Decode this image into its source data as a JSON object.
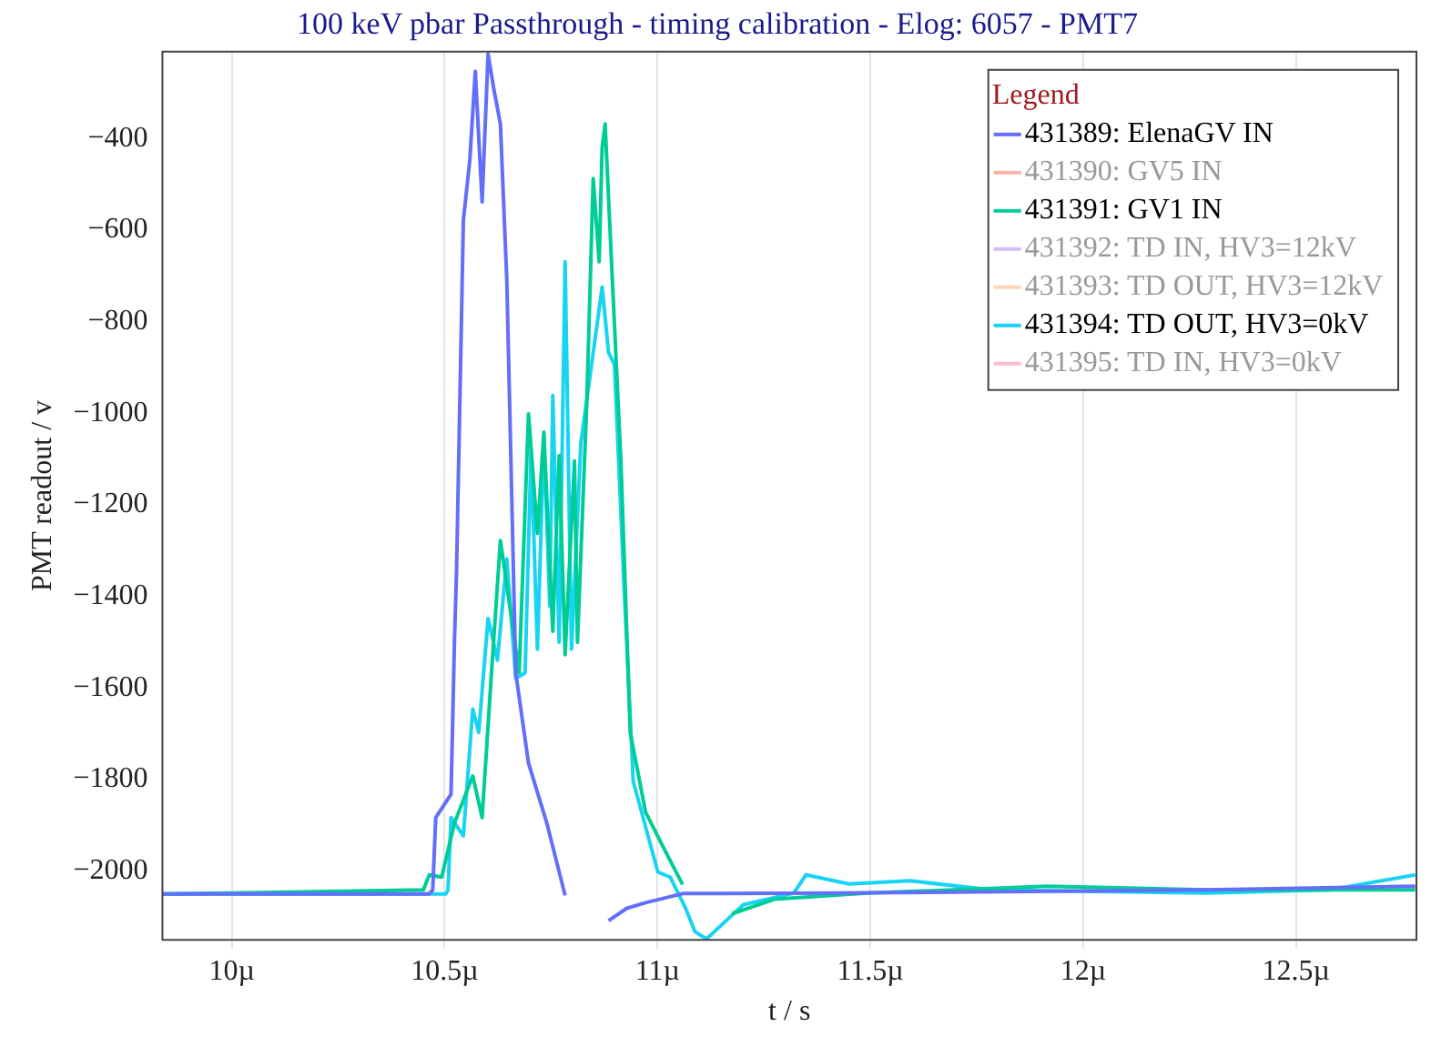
{
  "chart_data": {
    "type": "line",
    "title": "100 keV pbar Passthrough - timing calibration - Elog: 6057 - PMT7",
    "xlabel": "t / s",
    "ylabel": "PMT readout / v",
    "legend_title": "Legend",
    "legend": "top right",
    "grid": "x",
    "marker": "none",
    "line_style": "solid",
    "xlim": [
      9.837,
      12.783
    ],
    "xticks": [
      {
        "value": 10,
        "label": "10µ"
      },
      {
        "value": 10.5,
        "label": "10.5µ"
      },
      {
        "value": 11,
        "label": "11µ"
      },
      {
        "value": 11.5,
        "label": "11.5µ"
      },
      {
        "value": 12,
        "label": "12µ"
      },
      {
        "value": 12.5,
        "label": "12.5µ"
      }
    ],
    "ylim": [
      -2150,
      -210
    ],
    "yticks": [
      -2000,
      -1800,
      -1600,
      -1400,
      -1200,
      -1000,
      -800,
      -600,
      -400
    ],
    "series": [
      {
        "name": "431389: ElenaGV IN",
        "color": "#636efa",
        "x": [
          9.837,
          10.463,
          10.472,
          10.479,
          10.515,
          10.523,
          10.528,
          10.544,
          10.559,
          10.572,
          10.588,
          10.602,
          10.615,
          10.631,
          10.646,
          10.659,
          10.667,
          10.697,
          10.74,
          10.783,
          10.822,
          10.846,
          10.87,
          10.885,
          10.928,
          10.972,
          11.059,
          11.146,
          11.42,
          12.289,
          12.78
        ],
        "values": [
          -2050,
          -2050,
          -2041,
          -1883,
          -1832,
          -1500,
          -1341,
          -578,
          -448,
          -253,
          -538,
          -215,
          -289,
          -368,
          -709,
          -1238,
          -1567,
          -1764,
          -1895,
          -2053,
          null,
          null,
          null,
          -2108,
          -2081,
          -2069,
          -2049,
          -2049,
          -2048,
          -2041,
          -2033
        ]
      },
      {
        "name": "431390: GV5 IN",
        "color": "#ef553b"
      },
      {
        "name": "431391: GV1 IN",
        "color": "#00cc96",
        "x": [
          9.837,
          10.45,
          10.464,
          10.493,
          10.523,
          10.566,
          10.588,
          10.61,
          10.631,
          10.653,
          10.675,
          10.697,
          10.718,
          10.733,
          10.754,
          10.769,
          10.783,
          10.805,
          10.812,
          10.834,
          10.849,
          10.863,
          10.87,
          10.877,
          10.892,
          10.914,
          10.936,
          10.972,
          11.015,
          11.059,
          11.08,
          11.098,
          11.115,
          11.175,
          11.276,
          11.493,
          11.915,
          12.289,
          12.78
        ],
        "values": [
          -2050,
          -2041,
          -2008,
          -2013,
          -1895,
          -1792,
          -1883,
          -1567,
          -1278,
          -1421,
          -1567,
          -1001,
          -1262,
          -1041,
          -1476,
          -1092,
          -1527,
          -1104,
          -1500,
          -974,
          -487,
          -669,
          -420,
          -368,
          -669,
          -1104,
          -1697,
          -1871,
          -1950,
          -2029,
          null,
          null,
          null,
          -2093,
          -2061,
          -2048,
          -2033,
          -2041,
          -2041
        ]
      },
      {
        "name": "431392: TD IN, HV3=12kV",
        "color": "#ab63fa"
      },
      {
        "name": "431393: TD OUT, HV3=12kV",
        "color": "#ffa15a"
      },
      {
        "name": "431394: TD OUT, HV3=0kV",
        "color": "#19d3f3",
        "x": [
          9.837,
          10.502,
          10.508,
          10.515,
          10.544,
          10.566,
          10.58,
          10.602,
          10.624,
          10.646,
          10.667,
          10.689,
          10.703,
          10.718,
          10.733,
          10.747,
          10.754,
          10.769,
          10.783,
          10.798,
          10.82,
          10.841,
          10.87,
          10.885,
          10.899,
          10.921,
          10.943,
          11.001,
          11.03,
          11.066,
          11.088,
          11.115,
          11.202,
          11.32,
          11.349,
          11.45,
          11.593,
          11.785,
          12.289,
          12.58,
          12.78
        ],
        "values": [
          -2050,
          -2050,
          -2041,
          -1883,
          -1923,
          -1646,
          -1697,
          -1448,
          -1539,
          -1318,
          -1579,
          -1567,
          -1080,
          -1515,
          -1053,
          -1421,
          -961,
          -1500,
          -669,
          -1515,
          -1065,
          -922,
          -724,
          -867,
          -894,
          -1369,
          -1804,
          -2002,
          -2013,
          -2081,
          -2132,
          -2148,
          -2073,
          -2048,
          -2008,
          -2028,
          -2021,
          -2041,
          -2048,
          -2041,
          -2008
        ]
      },
      {
        "name": "431395: TD IN, HV3=0kV",
        "color": "#ff6692"
      }
    ]
  }
}
